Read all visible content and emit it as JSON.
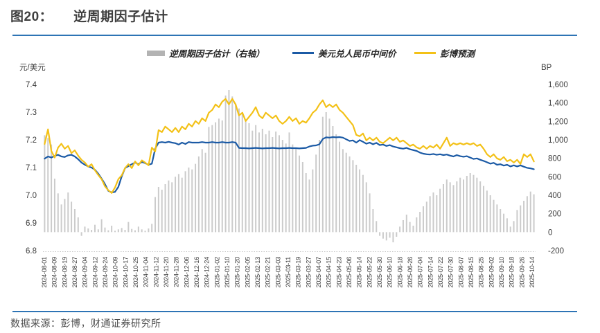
{
  "title": {
    "num": "图20：",
    "text": "逆周期因子估计"
  },
  "source": "数据来源：彭博，财通证券研究所",
  "accent_color": "#2e74b5",
  "legend": [
    {
      "label": "逆周期因子估计（右轴）",
      "type": "bar",
      "color": "#b3b3b3"
    },
    {
      "label": "美元兑人民币中间价",
      "type": "line",
      "color": "#1b5aa5"
    },
    {
      "label": "彭博预测",
      "type": "line",
      "color": "#f3c117"
    }
  ],
  "chart_data": {
    "type": "mixed-bar-line",
    "title": "逆周期因子估计",
    "grid": false,
    "left_axis": {
      "label": "元/美元",
      "min": 6.8,
      "max": 7.4,
      "ticks": [
        "7.4",
        "7.3",
        "7.2",
        "7.1",
        "7.0",
        "6.9",
        "6.8"
      ]
    },
    "right_axis": {
      "label": "BP",
      "min": -200,
      "max": 1600,
      "ticks": [
        "1,600",
        "1,400",
        "1,200",
        "1,000",
        "800",
        "600",
        "400",
        "200",
        "0",
        "-200"
      ]
    },
    "x_tick_labels": [
      "2024-08-01",
      "2024-08-09",
      "2024-08-19",
      "2024-08-27",
      "2024-09-04",
      "2024-09-12",
      "2024-09-24",
      "2024-10-09",
      "2024-10-17",
      "2024-10-25",
      "2024-11-04",
      "2024-11-12",
      "2024-11-20",
      "2024-11-28",
      "2024-12-06",
      "2024-12-16",
      "2024-12-24",
      "2025-01-02",
      "2025-01-10",
      "2025-01-20",
      "2025-02-05",
      "2025-02-13",
      "2025-02-21",
      "2025-03-03",
      "2025-03-11",
      "2025-03-19",
      "2025-03-27",
      "2025-04-07",
      "2025-04-15",
      "2025-04-23",
      "2025-05-06",
      "2025-05-14",
      "2025-05-22",
      "2025-05-30",
      "2025-06-10",
      "2025-06-18",
      "2025-06-26",
      "2025-07-04",
      "2025-07-14",
      "2025-07-22",
      "2025-07-30",
      "2025-08-07",
      "2025-08-15",
      "2025-08-25",
      "2025-09-02",
      "2025-09-10",
      "2025-09-18",
      "2025-09-26",
      "2025-10-14"
    ],
    "x_range": [
      "2024-08-01",
      "2025-10-14"
    ],
    "sample_step_days": 3,
    "series": [
      {
        "name": "逆周期因子估计（右轴）",
        "axis": "right",
        "type": "bar",
        "color": "#cbcbcb",
        "values": [
          1050,
          1020,
          950,
          580,
          420,
          300,
          360,
          430,
          330,
          250,
          160,
          -40,
          60,
          40,
          25,
          80,
          30,
          140,
          50,
          20,
          70,
          15,
          30,
          45,
          25,
          110,
          35,
          20,
          60,
          30,
          15,
          40,
          90,
          380,
          490,
          460,
          520,
          560,
          540,
          600,
          630,
          590,
          660,
          700,
          680,
          740,
          820,
          900,
          860,
          1140,
          1160,
          1190,
          1230,
          1210,
          1480,
          1540,
          1470,
          1390,
          1340,
          1280,
          1220,
          1180,
          1100,
          1160,
          1080,
          1120,
          1060,
          1100,
          1030,
          1090,
          1050,
          1000,
          960,
          1080,
          950,
          900,
          830,
          760,
          640,
          570,
          680,
          840,
          1000,
          1250,
          1300,
          1230,
          1150,
          1060,
          980,
          900,
          860,
          820,
          780,
          730,
          680,
          620,
          540,
          420,
          250,
          120,
          -40,
          -70,
          -90,
          -60,
          -110,
          -50,
          60,
          130,
          190,
          110,
          70,
          160,
          220,
          280,
          330,
          390,
          430,
          400,
          470,
          520,
          570,
          540,
          510,
          550,
          590,
          570,
          610,
          640,
          620,
          590,
          550,
          500,
          450,
          400,
          350,
          300,
          250,
          200,
          150,
          60,
          120,
          240,
          290,
          340,
          390,
          440,
          410
        ]
      },
      {
        "name": "美元兑人民币中间价",
        "axis": "left",
        "type": "line",
        "color": "#1b5aa5",
        "values": [
          7.132,
          7.14,
          7.136,
          7.142,
          7.146,
          7.14,
          7.138,
          7.144,
          7.146,
          7.14,
          7.13,
          7.118,
          7.11,
          7.104,
          7.1,
          7.092,
          7.078,
          7.06,
          7.04,
          7.016,
          7.01,
          7.012,
          7.03,
          7.068,
          7.098,
          7.105,
          7.112,
          7.118,
          7.112,
          7.12,
          7.116,
          7.11,
          7.114,
          7.168,
          7.19,
          7.192,
          7.19,
          7.193,
          7.19,
          7.188,
          7.183,
          7.19,
          7.185,
          7.192,
          7.19,
          7.19,
          7.19,
          7.192,
          7.19,
          7.19,
          7.192,
          7.19,
          7.19,
          7.192,
          7.19,
          7.19,
          7.192,
          7.19,
          7.171,
          7.17,
          7.17,
          7.169,
          7.17,
          7.171,
          7.17,
          7.169,
          7.17,
          7.17,
          7.171,
          7.17,
          7.169,
          7.17,
          7.17,
          7.171,
          7.17,
          7.17,
          7.169,
          7.17,
          7.171,
          7.176,
          7.179,
          7.18,
          7.184,
          7.203,
          7.209,
          7.208,
          7.21,
          7.209,
          7.21,
          7.208,
          7.202,
          7.196,
          7.198,
          7.19,
          7.199,
          7.193,
          7.186,
          7.19,
          7.184,
          7.189,
          7.181,
          7.183,
          7.178,
          7.181,
          7.176,
          7.173,
          7.17,
          7.168,
          7.171,
          7.166,
          7.163,
          7.16,
          7.154,
          7.15,
          7.148,
          7.147,
          7.149,
          7.146,
          7.148,
          7.145,
          7.147,
          7.143,
          7.14,
          7.145,
          7.141,
          7.139,
          7.141,
          7.136,
          7.131,
          7.133,
          7.128,
          7.124,
          7.119,
          7.114,
          7.117,
          7.11,
          7.112,
          7.107,
          7.11,
          7.104,
          7.108,
          7.104,
          7.108,
          7.103,
          7.099,
          7.097,
          7.094
        ]
      },
      {
        "name": "彭博预测",
        "axis": "left",
        "type": "line",
        "color": "#f3c117",
        "values": [
          7.185,
          7.238,
          7.16,
          7.136,
          7.172,
          7.186,
          7.168,
          7.178,
          7.152,
          7.162,
          7.143,
          7.128,
          7.118,
          7.103,
          7.112,
          7.09,
          7.073,
          7.058,
          7.032,
          7.018,
          7.008,
          7.028,
          7.058,
          7.072,
          7.098,
          7.112,
          7.098,
          7.122,
          7.108,
          7.126,
          7.118,
          7.108,
          7.172,
          7.158,
          7.235,
          7.228,
          7.248,
          7.238,
          7.228,
          7.243,
          7.228,
          7.248,
          7.238,
          7.258,
          7.248,
          7.268,
          7.258,
          7.278,
          7.268,
          7.298,
          7.308,
          7.328,
          7.318,
          7.338,
          7.348,
          7.328,
          7.348,
          7.328,
          7.288,
          7.298,
          7.268,
          7.283,
          7.298,
          7.318,
          7.288,
          7.278,
          7.298,
          7.288,
          7.278,
          7.288,
          7.268,
          7.258,
          7.268,
          7.283,
          7.268,
          7.278,
          7.258,
          7.268,
          7.262,
          7.278,
          7.298,
          7.308,
          7.328,
          7.343,
          7.318,
          7.328,
          7.318,
          7.328,
          7.308,
          7.298,
          7.283,
          7.268,
          7.253,
          7.218,
          7.213,
          7.223,
          7.198,
          7.208,
          7.198,
          7.208,
          7.193,
          7.188,
          7.198,
          7.208,
          7.198,
          7.208,
          7.193,
          7.198,
          7.188,
          7.178,
          7.183,
          7.173,
          7.168,
          7.178,
          7.168,
          7.178,
          7.172,
          7.183,
          7.168,
          7.188,
          7.208,
          7.178,
          7.188,
          7.183,
          7.188,
          7.183,
          7.188,
          7.183,
          7.188,
          7.178,
          7.183,
          7.168,
          7.148,
          7.138,
          7.148,
          7.133,
          7.128,
          7.138,
          7.123,
          7.128,
          7.118,
          7.128,
          7.113,
          7.148,
          7.138,
          7.148,
          7.122
        ]
      }
    ]
  }
}
